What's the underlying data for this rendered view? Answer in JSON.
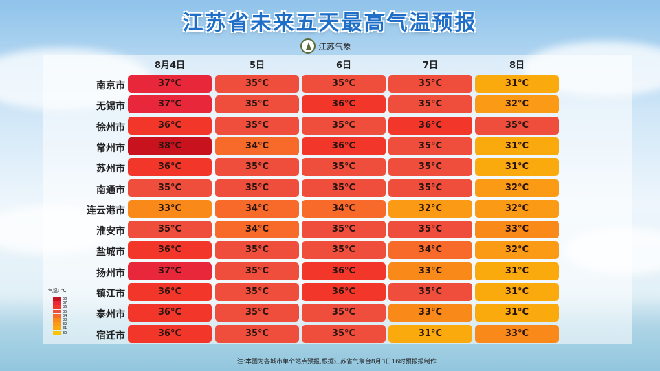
{
  "title": "江苏省未来五天最高气温预报",
  "logo_text": "江苏气象",
  "note": "注:本图为各城市单个站点预报,根据江苏省气象台8月3日16时预报报制作",
  "legend": {
    "title": "气温: ℃",
    "levels": [
      {
        "value": "38",
        "color": "#c8131e"
      },
      {
        "value": "37",
        "color": "#e8273a"
      },
      {
        "value": "36",
        "color": "#f2372a"
      },
      {
        "value": "35",
        "color": "#f04e3c"
      },
      {
        "value": "34",
        "color": "#f86a2a"
      },
      {
        "value": "33",
        "color": "#f98a1a"
      },
      {
        "value": "32",
        "color": "#fb9a14"
      },
      {
        "value": "31",
        "color": "#fbaa0e"
      },
      {
        "value": "30",
        "color": "#fcc400"
      }
    ]
  },
  "chart_data": {
    "type": "table",
    "unit": "°C",
    "columns": [
      "8月4日",
      "5日",
      "6日",
      "7日",
      "8日"
    ],
    "rows": [
      {
        "city": "南京市",
        "values": [
          37,
          35,
          35,
          35,
          31
        ]
      },
      {
        "city": "无锡市",
        "values": [
          37,
          35,
          36,
          35,
          32
        ]
      },
      {
        "city": "徐州市",
        "values": [
          36,
          35,
          35,
          36,
          35
        ]
      },
      {
        "city": "常州市",
        "values": [
          38,
          34,
          36,
          35,
          31
        ]
      },
      {
        "city": "苏州市",
        "values": [
          36,
          35,
          35,
          35,
          31
        ]
      },
      {
        "city": "南通市",
        "values": [
          35,
          35,
          35,
          35,
          32
        ]
      },
      {
        "city": "连云港市",
        "values": [
          33,
          34,
          34,
          32,
          32
        ]
      },
      {
        "city": "淮安市",
        "values": [
          35,
          34,
          35,
          35,
          33
        ]
      },
      {
        "city": "盐城市",
        "values": [
          36,
          35,
          35,
          34,
          32
        ]
      },
      {
        "city": "扬州市",
        "values": [
          37,
          35,
          36,
          33,
          31
        ]
      },
      {
        "city": "镇江市",
        "values": [
          36,
          35,
          36,
          35,
          31
        ]
      },
      {
        "city": "泰州市",
        "values": [
          36,
          35,
          35,
          33,
          31
        ]
      },
      {
        "city": "宿迁市",
        "values": [
          36,
          35,
          35,
          31,
          33
        ]
      }
    ]
  }
}
